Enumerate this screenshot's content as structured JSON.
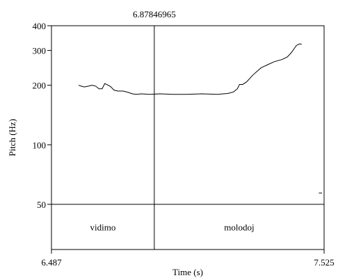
{
  "chart_data": {
    "type": "line",
    "cursor_label": "6.87846965",
    "xlabel": "Time (s)",
    "ylabel": "Pitch (Hz)",
    "xlim": [
      6.487,
      7.525
    ],
    "x_ticks": [
      "6.487",
      "7.525"
    ],
    "ylim": [
      0,
      400
    ],
    "y_ticks": [
      {
        "value": 400,
        "label": "400"
      },
      {
        "value": 300,
        "label": "300"
      },
      {
        "value": 200,
        "label": "200"
      },
      {
        "value": 100,
        "label": "100"
      },
      {
        "value": 50,
        "label": "50"
      }
    ],
    "cursor_time": 6.87847,
    "tier_boundary_pitch": 50,
    "intervals": [
      {
        "label": "vidimo",
        "start": 6.487,
        "end": 6.87847
      },
      {
        "label": "molodoj",
        "start": 6.87847,
        "end": 7.525
      }
    ],
    "series": [
      {
        "points": [
          [
            6.59,
            200
          ],
          [
            6.6,
            198
          ],
          [
            6.612,
            196
          ],
          [
            6.628,
            198
          ],
          [
            6.642,
            200
          ],
          [
            6.655,
            198
          ],
          [
            6.668,
            192
          ],
          [
            6.68,
            192
          ],
          [
            6.69,
            204
          ],
          [
            6.7,
            201
          ],
          [
            6.712,
            197
          ],
          [
            6.725,
            189
          ],
          [
            6.74,
            187
          ],
          [
            6.76,
            187
          ],
          [
            6.78,
            184
          ],
          [
            6.795,
            181
          ],
          [
            6.81,
            180
          ],
          [
            6.83,
            181
          ],
          [
            6.86,
            180
          ],
          [
            6.9,
            181
          ],
          [
            6.95,
            180
          ],
          [
            7.0,
            180
          ],
          [
            7.06,
            181
          ],
          [
            7.12,
            180
          ],
          [
            7.16,
            182
          ],
          [
            7.18,
            185
          ],
          [
            7.195,
            192
          ],
          [
            7.203,
            202
          ],
          [
            7.215,
            202
          ],
          [
            7.23,
            208
          ],
          [
            7.255,
            226
          ],
          [
            7.285,
            245
          ],
          [
            7.31,
            254
          ],
          [
            7.335,
            263
          ],
          [
            7.365,
            270
          ],
          [
            7.385,
            278
          ],
          [
            7.4,
            292
          ],
          [
            7.41,
            305
          ],
          [
            7.42,
            318
          ],
          [
            7.432,
            324
          ],
          [
            7.44,
            322
          ]
        ]
      },
      {
        "points": [
          [
            7.505,
            57
          ],
          [
            7.517,
            57
          ]
        ]
      }
    ]
  }
}
